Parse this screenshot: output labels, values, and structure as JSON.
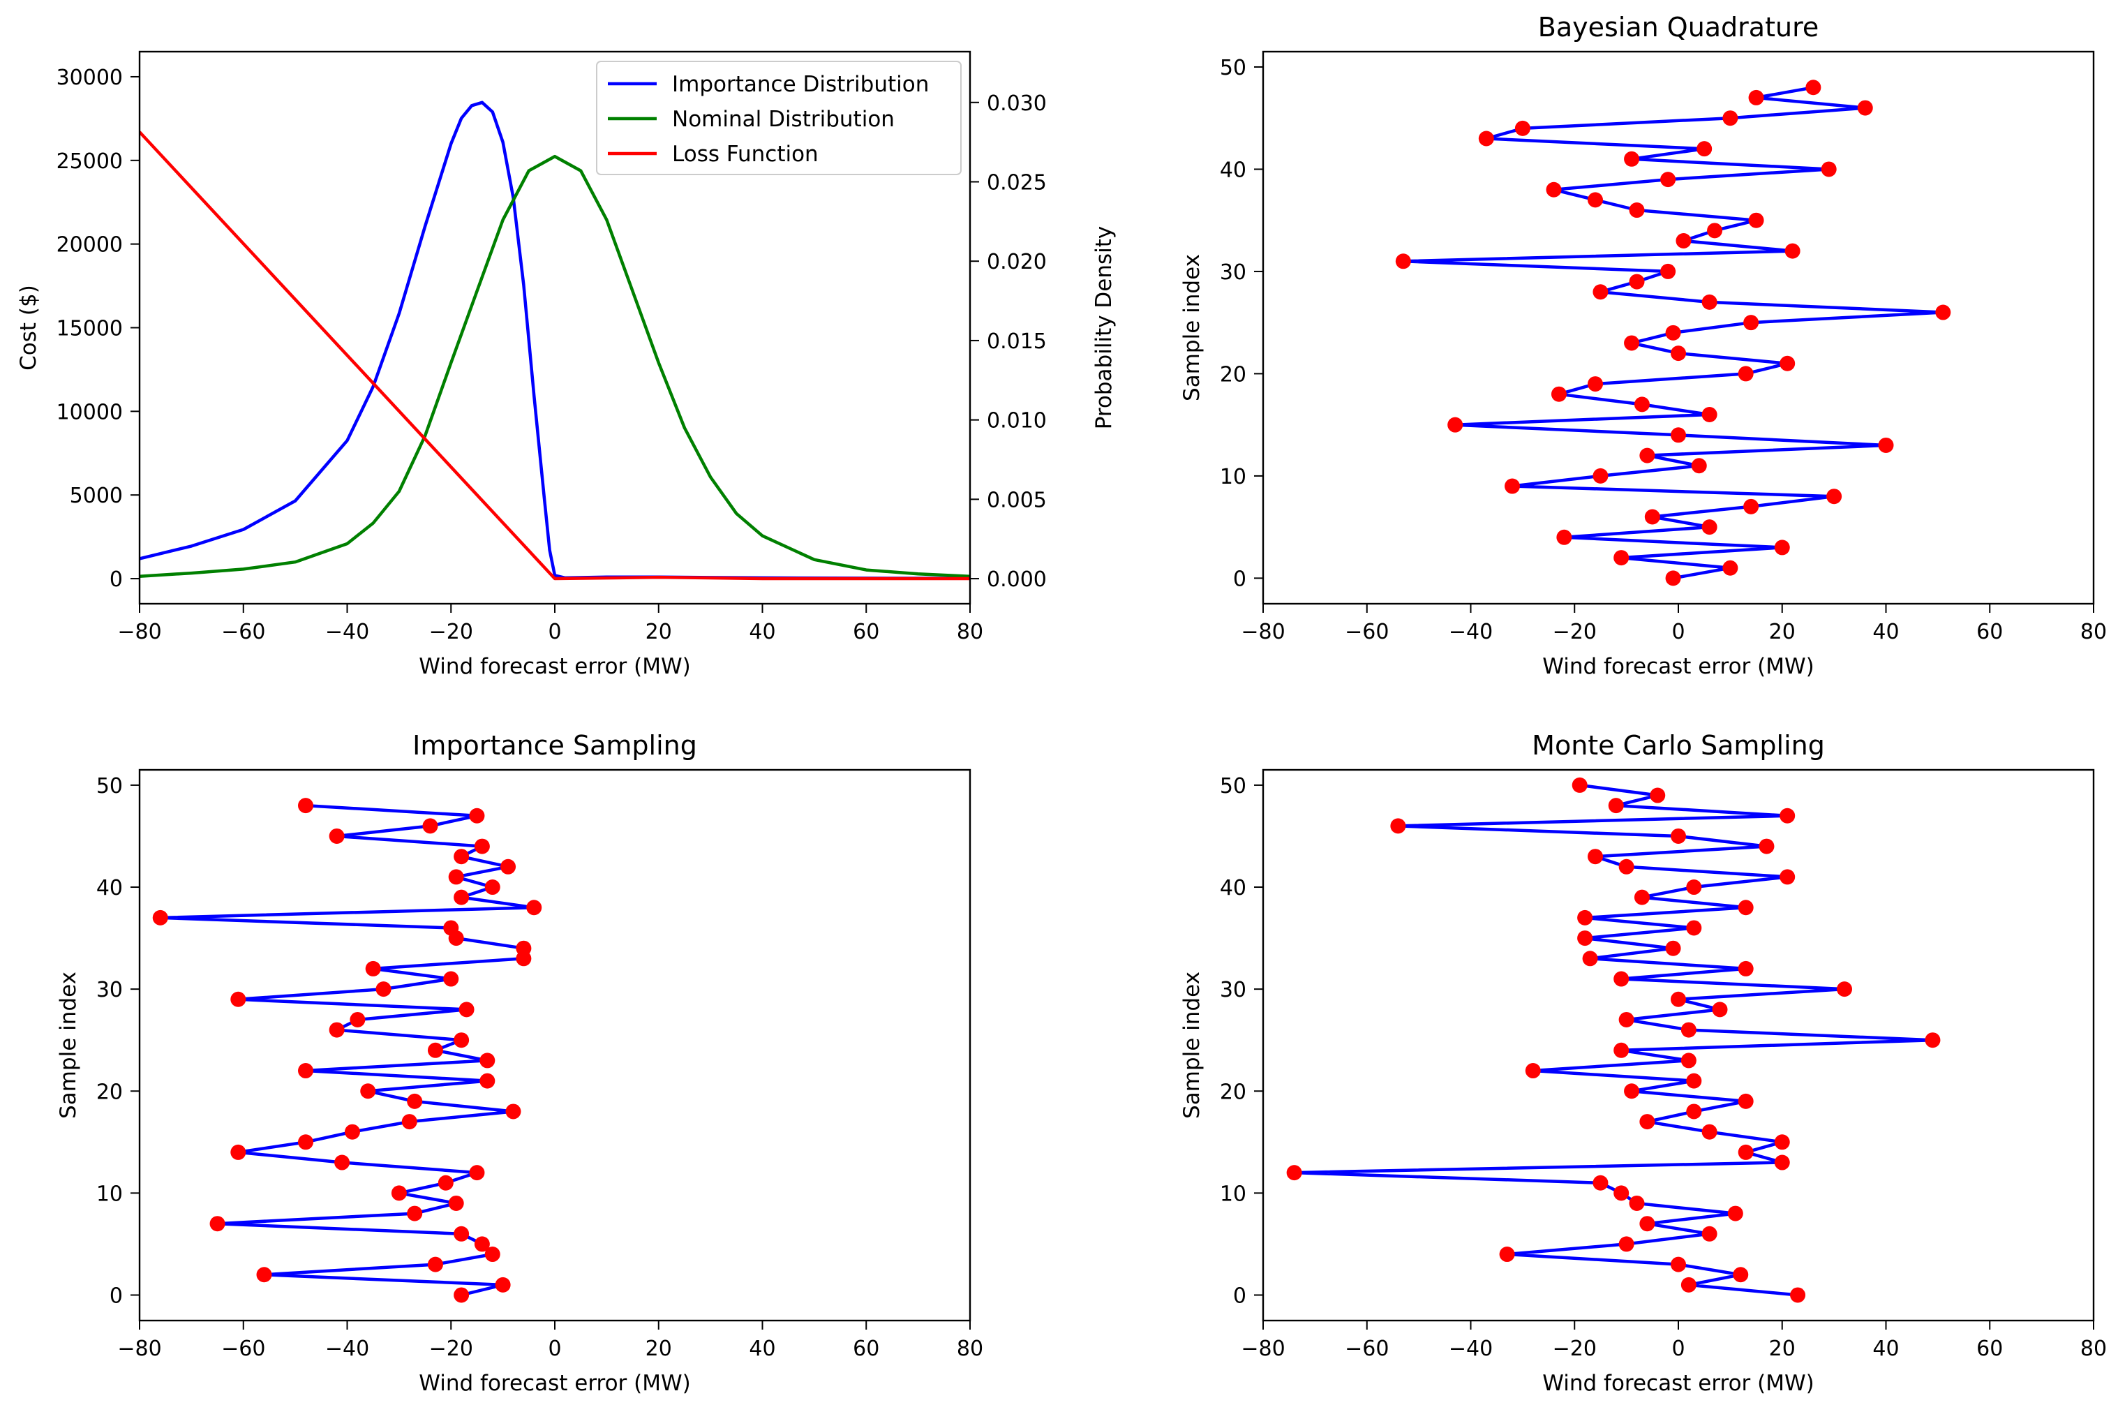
{
  "chart_data": [
    {
      "id": "p1",
      "type": "line",
      "title": "",
      "xlabel": "Wind forecast error (MW)",
      "ylabel": "Cost ($)",
      "y2label": "Probability Density",
      "xlim": [
        -80,
        80
      ],
      "ylim": [
        -1500,
        31500
      ],
      "y2lim": [
        -0.00158,
        0.0332
      ],
      "xticks": [
        "−80",
        "−60",
        "−40",
        "−20",
        "0",
        "20",
        "40",
        "60",
        "80"
      ],
      "yticks": [
        "0",
        "5000",
        "10000",
        "15000",
        "20000",
        "25000",
        "30000"
      ],
      "y2ticks": [
        "0.000",
        "0.005",
        "0.010",
        "0.015",
        "0.020",
        "0.025",
        "0.030"
      ],
      "legend_position": "top-right",
      "series": [
        {
          "name": "Importance Distribution",
          "color": "#0000ff",
          "axis": "right",
          "x": [
            -80,
            -70,
            -60,
            -50,
            -40,
            -35,
            -30,
            -25,
            -20,
            -18,
            -16,
            -14,
            -12,
            -10,
            -8,
            -6,
            -4,
            -2,
            -1,
            0,
            2,
            10,
            20,
            40,
            60,
            80
          ],
          "y": [
            0.00126,
            0.00205,
            0.0031,
            0.0049,
            0.0087,
            0.0121,
            0.0167,
            0.0222,
            0.0274,
            0.029,
            0.0298,
            0.03,
            0.0294,
            0.0275,
            0.024,
            0.0185,
            0.0115,
            0.005,
            0.0018,
            0.0002,
            5e-05,
            0.0001,
            0.0001,
            5e-05,
            3e-05,
            2e-05
          ]
        },
        {
          "name": "Nominal Distribution",
          "color": "#008000",
          "axis": "right",
          "x": [
            -80,
            -70,
            -60,
            -50,
            -40,
            -35,
            -30,
            -25,
            -20,
            -15,
            -10,
            -5,
            0,
            5,
            10,
            15,
            20,
            25,
            30,
            35,
            40,
            50,
            60,
            70,
            80
          ],
          "y": [
            0.00015,
            0.00035,
            0.0006,
            0.00105,
            0.0022,
            0.0035,
            0.0055,
            0.009,
            0.0136,
            0.0181,
            0.0226,
            0.0257,
            0.0266,
            0.0257,
            0.0226,
            0.0181,
            0.0136,
            0.0095,
            0.0064,
            0.0041,
            0.0027,
            0.0012,
            0.00055,
            0.0003,
            0.00015
          ]
        },
        {
          "name": "Loss Function",
          "color": "#ff0000",
          "axis": "left",
          "x": [
            -80,
            0,
            10,
            20,
            40,
            60,
            80
          ],
          "y": [
            26700,
            0,
            40,
            80,
            0,
            0,
            0
          ]
        }
      ]
    },
    {
      "id": "p2",
      "type": "line",
      "title": "Bayesian Quadrature",
      "xlabel": "Wind forecast error (MW)",
      "ylabel": "Sample index",
      "xlim": [
        -80,
        80
      ],
      "ylim": [
        -2.5,
        51.5
      ],
      "xticks": [
        "−80",
        "−60",
        "−40",
        "−20",
        "0",
        "20",
        "40",
        "60",
        "80"
      ],
      "yticks": [
        "0",
        "10",
        "20",
        "30",
        "40",
        "50"
      ],
      "series": [
        {
          "name": "samples",
          "line_color": "#0000ff",
          "marker_color": "#ff0000",
          "x": [
            -1,
            10,
            -11,
            20,
            -22,
            6,
            -5,
            14,
            30,
            -32,
            -15,
            4,
            -6,
            40,
            0,
            -43,
            6,
            -7,
            -23,
            -16,
            13,
            21,
            0,
            -9,
            -1,
            14,
            51,
            6,
            -15,
            -8,
            -2,
            -53,
            22,
            1,
            7,
            15,
            -8,
            -16,
            -24,
            -2,
            29,
            -9,
            5,
            -37,
            -30,
            10,
            36,
            15,
            26
          ],
          "y": [
            0,
            1,
            2,
            3,
            4,
            5,
            6,
            7,
            8,
            9,
            10,
            11,
            12,
            13,
            14,
            15,
            16,
            17,
            18,
            19,
            20,
            21,
            22,
            23,
            24,
            25,
            26,
            27,
            28,
            29,
            30,
            31,
            32,
            33,
            34,
            35,
            36,
            37,
            38,
            39,
            40,
            41,
            42,
            43,
            44,
            45,
            46,
            47,
            48
          ]
        }
      ]
    },
    {
      "id": "p3",
      "type": "line",
      "title": "Importance Sampling",
      "xlabel": "Wind forecast error (MW)",
      "ylabel": "Sample index",
      "xlim": [
        -80,
        80
      ],
      "ylim": [
        -2.5,
        51.5
      ],
      "xticks": [
        "−80",
        "−60",
        "−40",
        "−20",
        "0",
        "20",
        "40",
        "60",
        "80"
      ],
      "yticks": [
        "0",
        "10",
        "20",
        "30",
        "40",
        "50"
      ],
      "series": [
        {
          "name": "samples",
          "line_color": "#0000ff",
          "marker_color": "#ff0000",
          "x": [
            -18,
            -10,
            -56,
            -23,
            -12,
            -14,
            -18,
            -65,
            -27,
            -19,
            -30,
            -21,
            -15,
            -41,
            -61,
            -48,
            -39,
            -28,
            -8,
            -27,
            -36,
            -13,
            -48,
            -13,
            -23,
            -18,
            -42,
            -38,
            -17,
            -61,
            -33,
            -20,
            -35,
            -6,
            -6,
            -19,
            -20,
            -76,
            -4,
            -18,
            -12,
            -19,
            -9,
            -18,
            -14,
            -42,
            -24,
            -15,
            -48
          ],
          "y": [
            0,
            1,
            2,
            3,
            4,
            5,
            6,
            7,
            8,
            9,
            10,
            11,
            12,
            13,
            14,
            15,
            16,
            17,
            18,
            19,
            20,
            21,
            22,
            23,
            24,
            25,
            26,
            27,
            28,
            29,
            30,
            31,
            32,
            33,
            34,
            35,
            36,
            37,
            38,
            39,
            40,
            41,
            42,
            43,
            44,
            45,
            46,
            47,
            48
          ]
        }
      ]
    },
    {
      "id": "p4",
      "type": "line",
      "title": "Monte Carlo Sampling",
      "xlabel": "Wind forecast error (MW)",
      "ylabel": "Sample index",
      "xlim": [
        -80,
        80
      ],
      "ylim": [
        -2.5,
        51.5
      ],
      "xticks": [
        "−80",
        "−60",
        "−40",
        "−20",
        "0",
        "20",
        "40",
        "60",
        "80"
      ],
      "yticks": [
        "0",
        "10",
        "20",
        "30",
        "40",
        "50"
      ],
      "series": [
        {
          "name": "samples",
          "line_color": "#0000ff",
          "marker_color": "#ff0000",
          "x": [
            23,
            2,
            12,
            0,
            -33,
            -10,
            6,
            -6,
            11,
            -8,
            -11,
            -15,
            -74,
            20,
            13,
            20,
            6,
            -6,
            3,
            13,
            -9,
            3,
            -28,
            2,
            -11,
            49,
            2,
            -10,
            8,
            0,
            32,
            -11,
            13,
            -17,
            -1,
            -18,
            3,
            -18,
            13,
            -7,
            3,
            21,
            -10,
            -16,
            17,
            0,
            -54,
            21,
            -12,
            -4,
            -19
          ],
          "y": [
            0,
            1,
            2,
            3,
            4,
            5,
            6,
            7,
            8,
            9,
            10,
            11,
            12,
            13,
            14,
            15,
            16,
            17,
            18,
            19,
            20,
            21,
            22,
            23,
            24,
            25,
            26,
            27,
            28,
            29,
            30,
            31,
            32,
            33,
            34,
            35,
            36,
            37,
            38,
            39,
            40,
            41,
            42,
            43,
            44,
            45,
            46,
            47,
            48,
            49,
            50
          ]
        }
      ]
    }
  ]
}
